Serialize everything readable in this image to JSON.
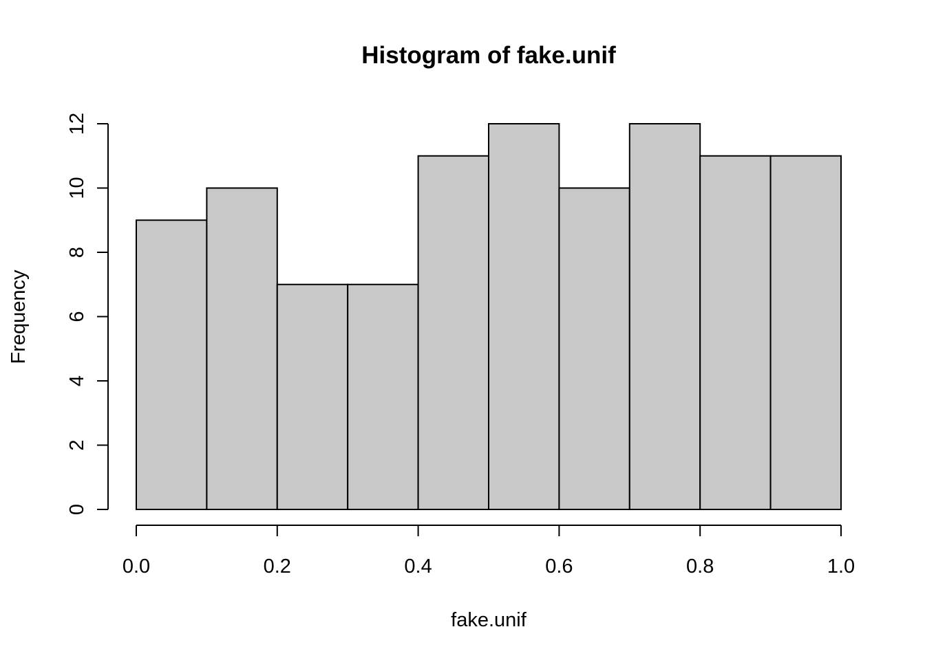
{
  "chart_data": {
    "type": "bar",
    "title": "Histogram of fake.unif",
    "xlabel": "fake.unif",
    "ylabel": "Frequency",
    "bin_edges": [
      0.0,
      0.1,
      0.2,
      0.3,
      0.4,
      0.5,
      0.6,
      0.7,
      0.8,
      0.9,
      1.0
    ],
    "values": [
      9,
      10,
      7,
      7,
      11,
      12,
      10,
      12,
      11,
      11
    ],
    "xlim": [
      0.0,
      1.0
    ],
    "ylim": [
      0,
      12
    ],
    "x_ticks": [
      "0.0",
      "0.2",
      "0.4",
      "0.6",
      "0.8",
      "1.0"
    ],
    "y_ticks": [
      "0",
      "2",
      "4",
      "6",
      "8",
      "10",
      "12"
    ],
    "bar_color": "#c8c8c8",
    "edge_color": "#000000",
    "grid": false,
    "legend": "none"
  }
}
